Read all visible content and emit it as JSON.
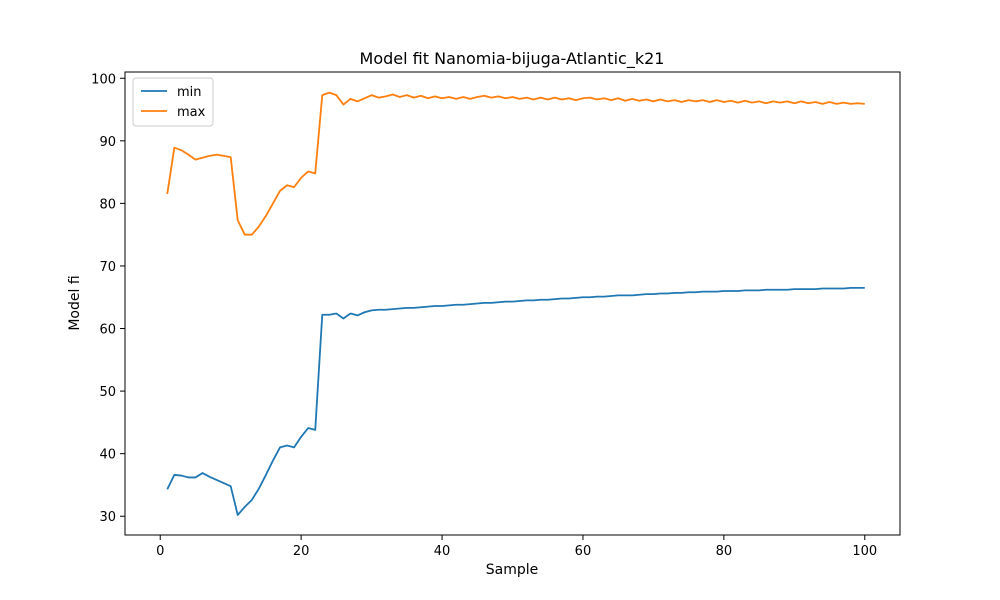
{
  "chart_data": {
    "type": "line",
    "title": "Model fit Nanomia-bijuga-Atlantic_k21",
    "xlabel": "Sample",
    "ylabel": "Model fi",
    "xlim": [
      -5,
      105
    ],
    "ylim": [
      27,
      101
    ],
    "xticks": [
      0,
      20,
      40,
      60,
      80,
      100
    ],
    "yticks": [
      30,
      40,
      50,
      60,
      70,
      80,
      90,
      100
    ],
    "legend_position": "upper-left",
    "series": [
      {
        "name": "min",
        "color": "#1f77b4",
        "x": [
          1,
          2,
          3,
          4,
          5,
          6,
          7,
          8,
          9,
          10,
          11,
          12,
          13,
          14,
          15,
          16,
          17,
          18,
          19,
          20,
          21,
          22,
          23,
          24,
          25,
          26,
          27,
          28,
          29,
          30,
          31,
          32,
          33,
          34,
          35,
          36,
          37,
          38,
          39,
          40,
          41,
          42,
          43,
          44,
          45,
          46,
          47,
          48,
          49,
          50,
          51,
          52,
          53,
          54,
          55,
          56,
          57,
          58,
          59,
          60,
          61,
          62,
          63,
          64,
          65,
          66,
          67,
          68,
          69,
          70,
          71,
          72,
          73,
          74,
          75,
          76,
          77,
          78,
          79,
          80,
          81,
          82,
          83,
          84,
          85,
          86,
          87,
          88,
          89,
          90,
          91,
          92,
          93,
          94,
          95,
          96,
          97,
          98,
          99,
          100
        ],
        "y": [
          34.3,
          36.6,
          36.5,
          36.2,
          36.2,
          36.9,
          36.3,
          35.8,
          35.3,
          34.8,
          30.2,
          31.5,
          32.6,
          34.4,
          36.6,
          38.9,
          41.0,
          41.3,
          41.0,
          42.7,
          44.1,
          43.8,
          62.2,
          62.2,
          62.4,
          61.6,
          62.4,
          62.1,
          62.6,
          62.9,
          63.0,
          63.0,
          63.1,
          63.2,
          63.3,
          63.3,
          63.4,
          63.5,
          63.6,
          63.6,
          63.7,
          63.8,
          63.8,
          63.9,
          64.0,
          64.1,
          64.1,
          64.2,
          64.3,
          64.3,
          64.4,
          64.5,
          64.5,
          64.6,
          64.6,
          64.7,
          64.8,
          64.8,
          64.9,
          65.0,
          65.0,
          65.1,
          65.1,
          65.2,
          65.3,
          65.3,
          65.3,
          65.4,
          65.5,
          65.5,
          65.6,
          65.6,
          65.7,
          65.7,
          65.8,
          65.8,
          65.9,
          65.9,
          65.9,
          66.0,
          66.0,
          66.0,
          66.1,
          66.1,
          66.1,
          66.2,
          66.2,
          66.2,
          66.2,
          66.3,
          66.3,
          66.3,
          66.3,
          66.4,
          66.4,
          66.4,
          66.4,
          66.5,
          66.5,
          66.5
        ]
      },
      {
        "name": "max",
        "color": "#ff7f0e",
        "x": [
          1,
          2,
          3,
          4,
          5,
          6,
          7,
          8,
          9,
          10,
          11,
          12,
          13,
          14,
          15,
          16,
          17,
          18,
          19,
          20,
          21,
          22,
          23,
          24,
          25,
          26,
          27,
          28,
          29,
          30,
          31,
          32,
          33,
          34,
          35,
          36,
          37,
          38,
          39,
          40,
          41,
          42,
          43,
          44,
          45,
          46,
          47,
          48,
          49,
          50,
          51,
          52,
          53,
          54,
          55,
          56,
          57,
          58,
          59,
          60,
          61,
          62,
          63,
          64,
          65,
          66,
          67,
          68,
          69,
          70,
          71,
          72,
          73,
          74,
          75,
          76,
          77,
          78,
          79,
          80,
          81,
          82,
          83,
          84,
          85,
          86,
          87,
          88,
          89,
          90,
          91,
          92,
          93,
          94,
          95,
          96,
          97,
          98,
          99,
          100
        ],
        "y": [
          81.5,
          88.9,
          88.5,
          87.8,
          87.0,
          87.3,
          87.6,
          87.8,
          87.6,
          87.4,
          77.3,
          75.0,
          75.0,
          76.3,
          78.0,
          80.0,
          82.0,
          82.9,
          82.6,
          84.1,
          85.1,
          84.8,
          97.3,
          97.7,
          97.3,
          95.8,
          96.7,
          96.3,
          96.8,
          97.3,
          96.9,
          97.1,
          97.4,
          97.0,
          97.3,
          96.9,
          97.2,
          96.8,
          97.1,
          96.8,
          97.0,
          96.7,
          97.0,
          96.7,
          97.0,
          97.2,
          96.9,
          97.1,
          96.8,
          97.0,
          96.7,
          96.9,
          96.6,
          96.9,
          96.6,
          96.9,
          96.6,
          96.8,
          96.5,
          96.8,
          96.9,
          96.6,
          96.8,
          96.5,
          96.8,
          96.4,
          96.7,
          96.4,
          96.6,
          96.3,
          96.6,
          96.3,
          96.5,
          96.2,
          96.5,
          96.3,
          96.5,
          96.2,
          96.5,
          96.2,
          96.4,
          96.1,
          96.4,
          96.1,
          96.3,
          96.0,
          96.3,
          96.1,
          96.3,
          96.0,
          96.3,
          96.0,
          96.2,
          95.9,
          96.2,
          95.9,
          96.1,
          95.9,
          96.0,
          95.9
        ]
      }
    ]
  }
}
